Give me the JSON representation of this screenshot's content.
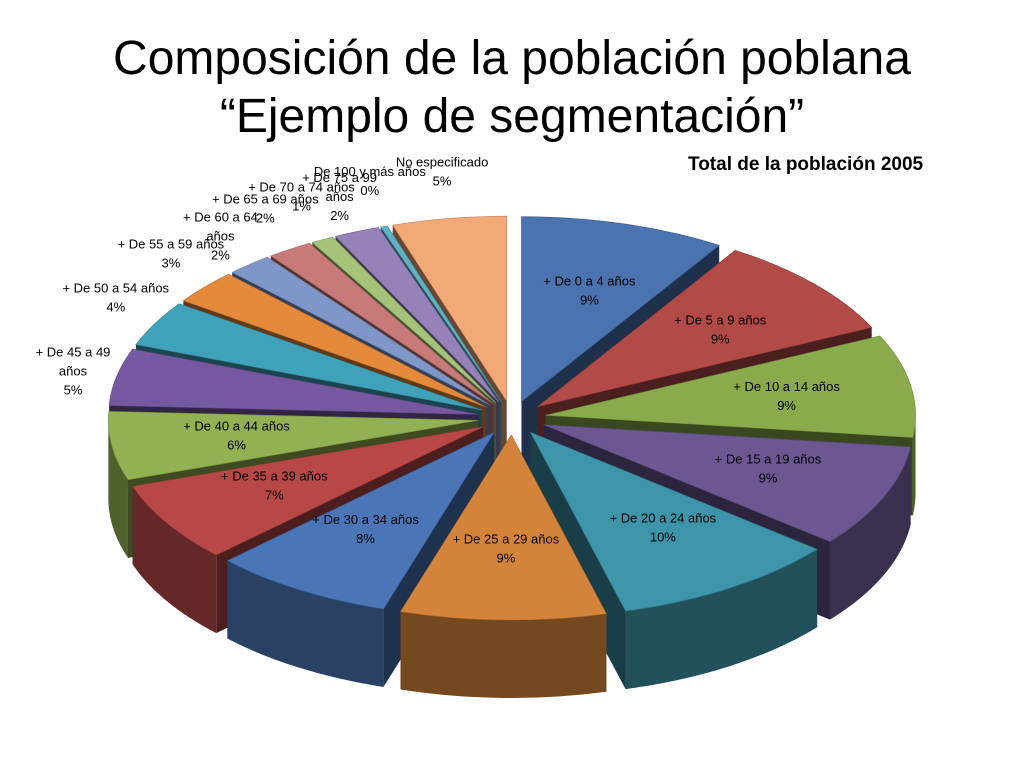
{
  "slide": {
    "title_line1": "Composición de la población poblana",
    "title_line2": "“Ejemplo de segmentación”"
  },
  "chart_data": {
    "type": "pie",
    "title": "Total de la población 2005",
    "three_d": true,
    "exploded": true,
    "legend": "none",
    "slices": [
      {
        "label": [
          "+ De 0 a 4 años"
        ],
        "pct_text": "9%",
        "value": 9,
        "color": "#4a73b0"
      },
      {
        "label": [
          "+ De 5 a 9 años"
        ],
        "pct_text": "9%",
        "value": 9,
        "color": "#b24a48"
      },
      {
        "label": [
          "+ De 10 a 14 años"
        ],
        "pct_text": "9%",
        "value": 9,
        "color": "#8aab4c"
      },
      {
        "label": [
          "+ De 15 a 19 años"
        ],
        "pct_text": "9%",
        "value": 9,
        "color": "#6b5792"
      },
      {
        "label": [
          "+ De 20 a 24 años"
        ],
        "pct_text": "10%",
        "value": 10,
        "color": "#3e94a8"
      },
      {
        "label": [
          "+ De 25 a 29 años"
        ],
        "pct_text": "9%",
        "value": 9,
        "color": "#d4843a"
      },
      {
        "label": [
          "+ De 30 a 34 años"
        ],
        "pct_text": "8%",
        "value": 8,
        "color": "#4a76b8"
      },
      {
        "label": [
          "+ De 35 a 39 años"
        ],
        "pct_text": "7%",
        "value": 7,
        "color": "#b84848"
      },
      {
        "label": [
          "+ De 40 a 44 años"
        ],
        "pct_text": "6%",
        "value": 6,
        "color": "#92b152"
      },
      {
        "label": [
          "+ De 45 a 49",
          "años"
        ],
        "pct_text": "5%",
        "value": 5,
        "color": "#7558a0"
      },
      {
        "label": [
          "+ De 50 a 54 años"
        ],
        "pct_text": "4%",
        "value": 4,
        "color": "#40a2ba"
      },
      {
        "label": [
          "+ De 55 a 59 años"
        ],
        "pct_text": "3%",
        "value": 3,
        "color": "#e48a3a"
      },
      {
        "label": [
          "+ De 60 a 64",
          "años"
        ],
        "pct_text": "2%",
        "value": 2,
        "color": "#7e97c8"
      },
      {
        "label": [
          "+ De 65 a 69 años"
        ],
        "pct_text": "2%",
        "value": 2,
        "color": "#c77a78"
      },
      {
        "label": [
          "+ De 70 a 74 años"
        ],
        "pct_text": "1%",
        "value": 1,
        "color": "#a5c47a"
      },
      {
        "label": [
          "+ De 75 a 99",
          "años"
        ],
        "pct_text": "2%",
        "value": 2,
        "color": "#9582b8"
      },
      {
        "label": [
          "De 100 y más años"
        ],
        "pct_text": "0%",
        "value": 0.3,
        "color": "#5fb2c6"
      },
      {
        "label": [
          "No especificado"
        ],
        "pct_text": "5%",
        "value": 5,
        "color": "#f3a878"
      }
    ]
  }
}
